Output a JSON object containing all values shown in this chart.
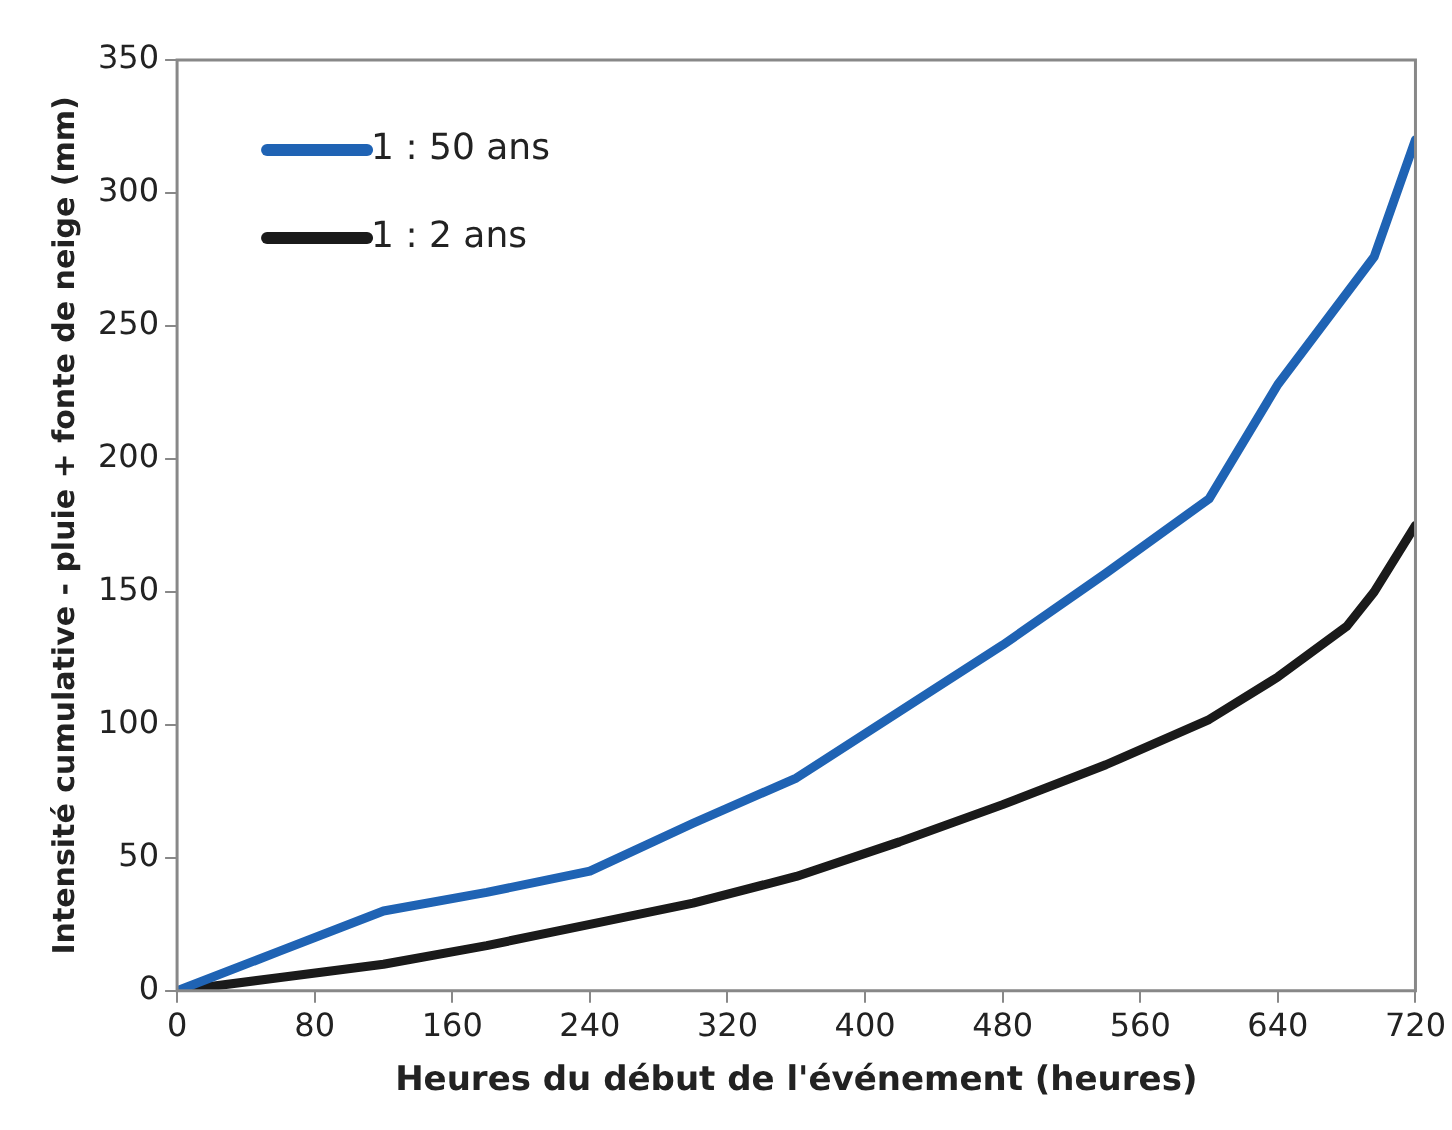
{
  "chart_data": {
    "type": "line",
    "xlabel": "Heures du début de l'événement (heures)",
    "ylabel": "Intensité cumulative - pluie + fonte de neige (mm)",
    "xlim": [
      0,
      720
    ],
    "xticks": [
      0,
      80,
      160,
      240,
      320,
      400,
      480,
      560,
      640,
      720
    ],
    "ylim": [
      0,
      350
    ],
    "yticks": [
      0,
      50,
      100,
      150,
      200,
      250,
      300,
      350
    ],
    "grid": false,
    "legend": "top left",
    "marker": "none",
    "line_style": "solid",
    "series": [
      {
        "name": "1 : 50 ans",
        "color": "#1f63b4",
        "x": [
          0,
          60,
          120,
          180,
          240,
          300,
          360,
          420,
          480,
          540,
          600,
          640,
          696,
          720
        ],
        "values": [
          0,
          15,
          30,
          37,
          45,
          63,
          80,
          105,
          130,
          157,
          185,
          228,
          276,
          320
        ]
      },
      {
        "name": "1 : 2 ans",
        "color": "#1a1a1a",
        "x": [
          0,
          60,
          120,
          180,
          240,
          300,
          360,
          420,
          480,
          540,
          600,
          640,
          680,
          696,
          720
        ],
        "values": [
          0,
          5,
          10,
          17,
          25,
          33,
          43,
          56,
          70,
          85,
          102,
          118,
          137,
          150,
          175
        ]
      }
    ]
  }
}
